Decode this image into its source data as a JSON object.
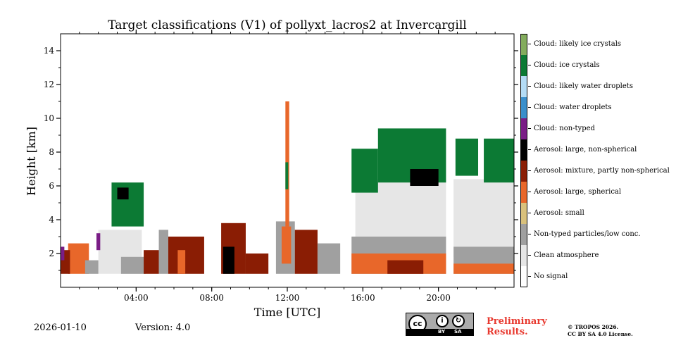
{
  "chart_data": {
    "type": "heatmap",
    "title": "Target classifications (V1) of pollyxt_lacros2 at Invercargill",
    "xlabel": "Time [UTC]",
    "ylabel": "Height [km]",
    "xlim_hours": [
      0,
      24
    ],
    "ylim_km": [
      0,
      15
    ],
    "x_ticks": [
      {
        "value": 4,
        "label": "04:00"
      },
      {
        "value": 8,
        "label": "08:00"
      },
      {
        "value": 12,
        "label": "12:00"
      },
      {
        "value": 16,
        "label": "16:00"
      },
      {
        "value": 20,
        "label": "20:00"
      }
    ],
    "y_ticks": [
      {
        "value": 2,
        "label": "2"
      },
      {
        "value": 4,
        "label": "4"
      },
      {
        "value": 6,
        "label": "6"
      },
      {
        "value": 8,
        "label": "8"
      },
      {
        "value": 10,
        "label": "10"
      },
      {
        "value": 12,
        "label": "12"
      },
      {
        "value": 14,
        "label": "14"
      }
    ],
    "classes": [
      {
        "label": "Cloud: likely ice crystals",
        "color": "#83ac5d"
      },
      {
        "label": "Cloud: ice crystals",
        "color": "#0c7a34"
      },
      {
        "label": "Cloud: likely water droplets",
        "color": "#b4dcf5"
      },
      {
        "label": "Cloud: water droplets",
        "color": "#3a8fcb"
      },
      {
        "label": "Cloud: non-typed",
        "color": "#7a1d86"
      },
      {
        "label": "Aerosol: large, non-spherical",
        "color": "#000000"
      },
      {
        "label": "Aerosol: mixture, partly non-spherical",
        "color": "#8a1d04"
      },
      {
        "label": "Aerosol: large, spherical",
        "color": "#e8672a"
      },
      {
        "label": "Aerosol: small",
        "color": "#d9c17c"
      },
      {
        "label": "Non-typed particles/low conc.",
        "color": "#a0a0a0"
      },
      {
        "label": "Clean atmosphere",
        "color": "#e6e6e6"
      },
      {
        "label": "No signal",
        "color": "#ffffff"
      }
    ],
    "regions": [
      {
        "cls": "Clean atmosphere",
        "t0": 2.0,
        "t1": 4.3,
        "h0": 0.8,
        "h1": 3.4
      },
      {
        "cls": "Non-typed particles/low conc.",
        "t0": 3.2,
        "t1": 4.5,
        "h0": 0.8,
        "h1": 1.8
      },
      {
        "cls": "Cloud: ice crystals",
        "t0": 2.7,
        "t1": 4.4,
        "h0": 3.6,
        "h1": 6.2
      },
      {
        "cls": "Aerosol: large, non-spherical",
        "t0": 3.0,
        "t1": 3.6,
        "h0": 5.2,
        "h1": 5.9
      },
      {
        "cls": "Aerosol: large, spherical",
        "t0": 0.4,
        "t1": 1.5,
        "h0": 0.8,
        "h1": 2.6
      },
      {
        "cls": "Aerosol: mixture, partly non-spherical",
        "t0": 0.0,
        "t1": 0.5,
        "h0": 0.8,
        "h1": 2.2
      },
      {
        "cls": "Non-typed particles/low conc.",
        "t0": 1.3,
        "t1": 2.0,
        "h0": 0.8,
        "h1": 1.6
      },
      {
        "cls": "Aerosol: mixture, partly non-spherical",
        "t0": 4.4,
        "t1": 5.2,
        "h0": 0.8,
        "h1": 2.2
      },
      {
        "cls": "Non-typed particles/low conc.",
        "t0": 5.2,
        "t1": 5.7,
        "h0": 0.8,
        "h1": 3.4
      },
      {
        "cls": "Aerosol: mixture, partly non-spherical",
        "t0": 5.7,
        "t1": 7.6,
        "h0": 0.8,
        "h1": 3.0
      },
      {
        "cls": "Aerosol: large, spherical",
        "t0": 6.2,
        "t1": 6.6,
        "h0": 0.8,
        "h1": 2.2
      },
      {
        "cls": "Aerosol: mixture, partly non-spherical",
        "t0": 8.5,
        "t1": 9.8,
        "h0": 0.8,
        "h1": 3.8
      },
      {
        "cls": "Aerosol: large, non-spherical",
        "t0": 8.6,
        "t1": 9.2,
        "h0": 0.8,
        "h1": 2.4
      },
      {
        "cls": "Aerosol: mixture, partly non-spherical",
        "t0": 9.8,
        "t1": 11.0,
        "h0": 0.8,
        "h1": 2.0
      },
      {
        "cls": "Non-typed particles/low conc.",
        "t0": 11.4,
        "t1": 12.4,
        "h0": 0.8,
        "h1": 3.9
      },
      {
        "cls": "Aerosol: large, spherical",
        "t0": 11.7,
        "t1": 12.2,
        "h0": 1.4,
        "h1": 3.6
      },
      {
        "cls": "Aerosol: mixture, partly non-spherical",
        "t0": 12.4,
        "t1": 13.6,
        "h0": 0.8,
        "h1": 3.4
      },
      {
        "cls": "Non-typed particles/low conc.",
        "t0": 13.6,
        "t1": 14.8,
        "h0": 0.8,
        "h1": 2.6
      },
      {
        "cls": "Aerosol: large, spherical",
        "t0": 11.9,
        "t1": 12.1,
        "h0": 3.6,
        "h1": 11.0
      },
      {
        "cls": "Cloud: ice crystals",
        "t0": 11.9,
        "t1": 12.05,
        "h0": 5.8,
        "h1": 7.4
      },
      {
        "cls": "Clean atmosphere",
        "t0": 15.6,
        "t1": 20.4,
        "h0": 2.8,
        "h1": 6.4
      },
      {
        "cls": "Non-typed particles/low conc.",
        "t0": 15.4,
        "t1": 20.4,
        "h0": 0.8,
        "h1": 3.0
      },
      {
        "cls": "Aerosol: large, spherical",
        "t0": 15.4,
        "t1": 20.4,
        "h0": 0.8,
        "h1": 2.0
      },
      {
        "cls": "Aerosol: mixture, partly non-spherical",
        "t0": 17.3,
        "t1": 19.2,
        "h0": 0.8,
        "h1": 1.6
      },
      {
        "cls": "Cloud: ice crystals",
        "t0": 15.4,
        "t1": 16.8,
        "h0": 5.6,
        "h1": 8.2
      },
      {
        "cls": "Cloud: ice crystals",
        "t0": 16.8,
        "t1": 20.4,
        "h0": 6.2,
        "h1": 9.4
      },
      {
        "cls": "Aerosol: large, non-spherical",
        "t0": 18.5,
        "t1": 20.0,
        "h0": 6.0,
        "h1": 7.0
      },
      {
        "cls": "Clean atmosphere",
        "t0": 20.8,
        "t1": 24.0,
        "h0": 1.8,
        "h1": 6.4
      },
      {
        "cls": "Non-typed particles/low conc.",
        "t0": 20.8,
        "t1": 24.0,
        "h0": 0.8,
        "h1": 2.4
      },
      {
        "cls": "Aerosol: large, spherical",
        "t0": 20.8,
        "t1": 24.0,
        "h0": 0.8,
        "h1": 1.4
      },
      {
        "cls": "Cloud: ice crystals",
        "t0": 20.9,
        "t1": 22.1,
        "h0": 6.6,
        "h1": 8.8
      },
      {
        "cls": "Cloud: ice crystals",
        "t0": 22.4,
        "t1": 24.0,
        "h0": 6.2,
        "h1": 8.8
      },
      {
        "cls": "Cloud: non-typed",
        "t0": 1.9,
        "t1": 2.1,
        "h0": 2.2,
        "h1": 3.2
      },
      {
        "cls": "Cloud: non-typed",
        "t0": 0.0,
        "t1": 0.2,
        "h0": 1.6,
        "h1": 2.4
      }
    ]
  },
  "footer": {
    "date": "2026-01-10",
    "version": "Version: 4.0",
    "preliminary_line1": "Preliminary",
    "preliminary_line2": "Results.",
    "copyright_line1": "© TROPOS 2026.",
    "copyright_line2": "CC BY SA 4.0 License.",
    "cc_logo_text": "cc",
    "cc_by": "BY",
    "cc_sa": "SA"
  }
}
